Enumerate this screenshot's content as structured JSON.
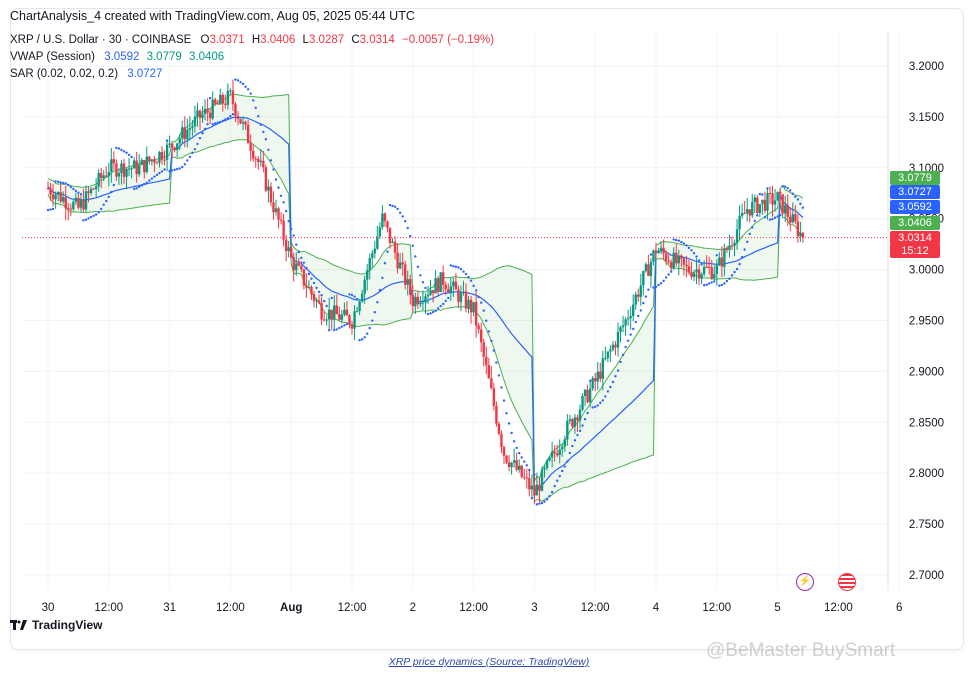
{
  "header": "ChartAnalysis_4 created with TradingView.com, Aug 05, 2025 05:44 UTC",
  "legend": {
    "symbol": "XRP / U.S. Dollar · 30 · COINBASE",
    "o_label": "O",
    "o_value": "3.0371",
    "h_label": "H",
    "h_value": "3.0406",
    "l_label": "L",
    "l_value": "3.0287",
    "c_label": "C",
    "c_value": "3.0314",
    "change": "−0.0057 (−0.19%)",
    "vwap_name": "VWAP (Session)",
    "vwap_v1": "3.0592",
    "vwap_v2": "3.0779",
    "vwap_v3": "3.0406",
    "sar_name": "SAR (0.02, 0.02, 0.2)",
    "sar_v": "3.0727"
  },
  "price_tags": [
    {
      "label": "3.0779",
      "value": 3.0779,
      "color": "#4caf50"
    },
    {
      "label": "3.0727",
      "value": 3.0727,
      "color": "#2962ff"
    },
    {
      "label": "3.0592",
      "value": 3.0592,
      "color": "#2962ff"
    },
    {
      "label": "3.0406",
      "value": 3.0406,
      "color": "#4caf50"
    },
    {
      "label": "3.0314",
      "value": 3.0314,
      "color": "#f23645"
    },
    {
      "label": "15:12",
      "value": null,
      "color": "#f23645"
    }
  ],
  "brand": "TradingView",
  "caption": "XRP price dynamics (Source: TradingView)",
  "watermark": "@BeMaster BuySmart",
  "colors": {
    "up": "#089981",
    "down": "#f23645",
    "vwap": "#2962ff",
    "band": "#4caf50",
    "sar": "#2962ff"
  },
  "icons": [
    "lightning-icon",
    "us-flag-icon",
    "tradingview-logo-icon"
  ],
  "chart_data": {
    "type": "candlestick",
    "title": "XRP / U.S. Dollar · 30 · COINBASE",
    "xlabel": "",
    "ylabel": "",
    "x_ticks": [
      "30",
      "12:00",
      "31",
      "12:00",
      "Aug",
      "12:00",
      "2",
      "12:00",
      "3",
      "12:00",
      "4",
      "12:00",
      "5",
      "12:00",
      "6"
    ],
    "y_ticks": [
      "3.2000",
      "3.1500",
      "3.1000",
      "3.0500",
      "3.0000",
      "2.9500",
      "2.9000",
      "2.8500",
      "2.8000",
      "2.7500",
      "2.7000"
    ],
    "ylim": [
      2.683,
      3.222
    ],
    "bar_interval": "30m",
    "last_close": 3.0314,
    "price_path": [
      {
        "x": "30 00:00",
        "y": 3.08
      },
      {
        "x": "30 06:00",
        "y": 3.06
      },
      {
        "x": "30 12:00",
        "y": 3.1
      },
      {
        "x": "30 18:00",
        "y": 3.1
      },
      {
        "x": "31 00:00",
        "y": 3.12
      },
      {
        "x": "31 06:00",
        "y": 3.15
      },
      {
        "x": "31 12:00",
        "y": 3.17
      },
      {
        "x": "31 18:00",
        "y": 3.1
      },
      {
        "x": "Aug 1 00:00",
        "y": 3.01
      },
      {
        "x": "Aug 1 06:00",
        "y": 2.96
      },
      {
        "x": "Aug 1 12:00",
        "y": 2.95
      },
      {
        "x": "Aug 1 18:00",
        "y": 3.05
      },
      {
        "x": "2 00:00",
        "y": 2.97
      },
      {
        "x": "2 06:00",
        "y": 2.99
      },
      {
        "x": "2 12:00",
        "y": 2.96
      },
      {
        "x": "2 18:00",
        "y": 2.82
      },
      {
        "x": "3 00:00",
        "y": 2.78
      },
      {
        "x": "3 06:00",
        "y": 2.84
      },
      {
        "x": "3 12:00",
        "y": 2.89
      },
      {
        "x": "3 18:00",
        "y": 2.95
      },
      {
        "x": "4 00:00",
        "y": 3.02
      },
      {
        "x": "4 06:00",
        "y": 3.0
      },
      {
        "x": "4 12:00",
        "y": 3.0
      },
      {
        "x": "4 18:00",
        "y": 3.06
      },
      {
        "x": "5 00:00",
        "y": 3.07
      },
      {
        "x": "5 05:00",
        "y": 3.0314
      }
    ],
    "series": [
      {
        "name": "VWAP (Session)",
        "value": 3.0592
      },
      {
        "name": "VWAP upper band",
        "value": 3.0779
      },
      {
        "name": "VWAP lower band",
        "value": 3.0406
      },
      {
        "name": "SAR (0.02, 0.02, 0.2)",
        "value": 3.0727
      }
    ],
    "legend": "top-left",
    "grid": true
  }
}
